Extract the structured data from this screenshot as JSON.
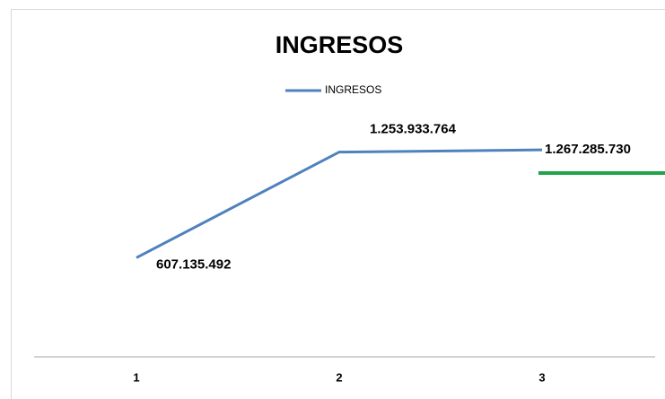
{
  "chart_data": {
    "type": "line",
    "title": "INGRESOS",
    "categories": [
      "1",
      "2",
      "3"
    ],
    "series": [
      {
        "name": "INGRESOS",
        "color": "#4f81bd",
        "values": [
          607135492,
          1253933764,
          1267285730
        ],
        "value_labels": [
          "607.135.492",
          "1.253.933.764",
          "1.267.285.730"
        ]
      }
    ],
    "ylim": [
      0,
      1400000000
    ]
  }
}
